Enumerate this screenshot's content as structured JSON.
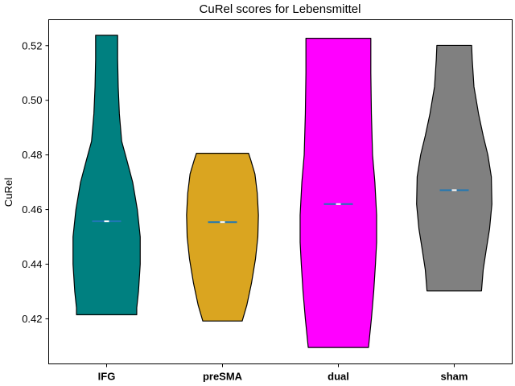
{
  "chart_data": {
    "type": "violin",
    "title": "CuRel scores for Lebensmittel",
    "xlabel": "",
    "ylabel": "CuRel",
    "ylim": [
      0.4035,
      0.5295
    ],
    "yticks": [
      "0.42",
      "0.44",
      "0.46",
      "0.48",
      "0.50",
      "0.52"
    ],
    "grid": false,
    "categories": [
      "IFG",
      "preSMA",
      "dual",
      "sham"
    ],
    "series": [
      {
        "name": "IFG",
        "color": "#008080",
        "min": 0.4215,
        "max": 0.5238,
        "median": 0.4557,
        "profile": [
          [
            0.4215,
            0.52
          ],
          [
            0.424,
            0.52
          ],
          [
            0.43,
            0.55
          ],
          [
            0.44,
            0.58
          ],
          [
            0.45,
            0.58
          ],
          [
            0.46,
            0.53
          ],
          [
            0.47,
            0.45
          ],
          [
            0.478,
            0.35
          ],
          [
            0.485,
            0.26
          ],
          [
            0.495,
            0.22
          ],
          [
            0.505,
            0.2
          ],
          [
            0.515,
            0.19
          ],
          [
            0.5238,
            0.19
          ]
        ]
      },
      {
        "name": "preSMA",
        "color": "#DAA520",
        "min": 0.4192,
        "max": 0.4806,
        "median": 0.4554,
        "profile": [
          [
            0.4192,
            0.34
          ],
          [
            0.425,
            0.42
          ],
          [
            0.433,
            0.5
          ],
          [
            0.442,
            0.57
          ],
          [
            0.45,
            0.61
          ],
          [
            0.458,
            0.62
          ],
          [
            0.466,
            0.6
          ],
          [
            0.473,
            0.56
          ],
          [
            0.478,
            0.49
          ],
          [
            0.4806,
            0.45
          ]
        ]
      },
      {
        "name": "dual",
        "color": "#FF00FF",
        "min": 0.4095,
        "max": 0.5227,
        "median": 0.462,
        "profile": [
          [
            0.4095,
            0.52
          ],
          [
            0.42,
            0.57
          ],
          [
            0.43,
            0.61
          ],
          [
            0.44,
            0.64
          ],
          [
            0.448,
            0.66
          ],
          [
            0.458,
            0.66
          ],
          [
            0.47,
            0.63
          ],
          [
            0.48,
            0.59
          ],
          [
            0.495,
            0.57
          ],
          [
            0.51,
            0.56
          ],
          [
            0.5227,
            0.56
          ]
        ]
      },
      {
        "name": "sham",
        "color": "#808080",
        "min": 0.4302,
        "max": 0.5201,
        "median": 0.4671,
        "profile": [
          [
            0.4302,
            0.47
          ],
          [
            0.438,
            0.5
          ],
          [
            0.445,
            0.55
          ],
          [
            0.453,
            0.61
          ],
          [
            0.462,
            0.65
          ],
          [
            0.472,
            0.64
          ],
          [
            0.48,
            0.58
          ],
          [
            0.487,
            0.5
          ],
          [
            0.495,
            0.42
          ],
          [
            0.505,
            0.34
          ],
          [
            0.515,
            0.31
          ],
          [
            0.5201,
            0.3
          ]
        ]
      }
    ]
  }
}
